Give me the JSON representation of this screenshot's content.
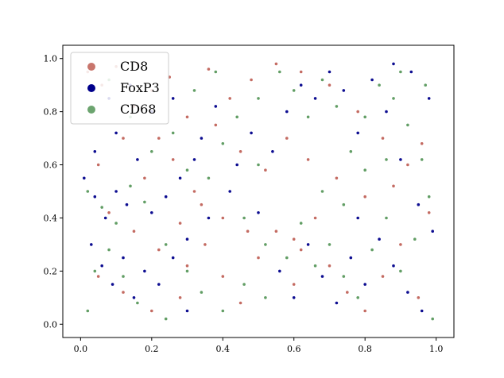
{
  "chart_data": {
    "type": "scatter",
    "title": "",
    "xlabel": "",
    "ylabel": "",
    "xlim": [
      -0.05,
      1.05
    ],
    "ylim": [
      -0.05,
      1.05
    ],
    "xticks": [
      "0.0",
      "0.2",
      "0.4",
      "0.6",
      "0.8",
      "1.0"
    ],
    "yticks": [
      "0.0",
      "0.2",
      "0.4",
      "0.6",
      "0.8",
      "1.0"
    ],
    "grid": false,
    "legend_position": "top-left",
    "series": [
      {
        "name": "CD8",
        "color": "#b03a2e",
        "points": [
          [
            0.02,
            0.95
          ],
          [
            0.06,
            0.9
          ],
          [
            0.1,
            0.97
          ],
          [
            0.15,
            0.82
          ],
          [
            0.2,
            0.88
          ],
          [
            0.25,
            0.93
          ],
          [
            0.3,
            0.78
          ],
          [
            0.12,
            0.7
          ],
          [
            0.05,
            0.6
          ],
          [
            0.18,
            0.55
          ],
          [
            0.26,
            0.62
          ],
          [
            0.32,
            0.5
          ],
          [
            0.08,
            0.42
          ],
          [
            0.15,
            0.35
          ],
          [
            0.22,
            0.28
          ],
          [
            0.3,
            0.22
          ],
          [
            0.05,
            0.18
          ],
          [
            0.12,
            0.12
          ],
          [
            0.2,
            0.05
          ],
          [
            0.28,
            0.1
          ],
          [
            0.35,
            0.3
          ],
          [
            0.4,
            0.18
          ],
          [
            0.45,
            0.08
          ],
          [
            0.5,
            0.25
          ],
          [
            0.55,
            0.35
          ],
          [
            0.6,
            0.32
          ],
          [
            0.62,
            0.28
          ],
          [
            0.66,
            0.4
          ],
          [
            0.7,
            0.22
          ],
          [
            0.75,
            0.12
          ],
          [
            0.8,
            0.05
          ],
          [
            0.85,
            0.18
          ],
          [
            0.9,
            0.3
          ],
          [
            0.95,
            0.1
          ],
          [
            0.98,
            0.42
          ],
          [
            0.92,
            0.6
          ],
          [
            0.85,
            0.7
          ],
          [
            0.78,
            0.8
          ],
          [
            0.7,
            0.9
          ],
          [
            0.62,
            0.95
          ],
          [
            0.55,
            0.98
          ],
          [
            0.48,
            0.92
          ],
          [
            0.42,
            0.85
          ],
          [
            0.38,
            0.75
          ],
          [
            0.45,
            0.65
          ],
          [
            0.52,
            0.58
          ],
          [
            0.58,
            0.7
          ],
          [
            0.64,
            0.62
          ],
          [
            0.72,
            0.55
          ],
          [
            0.8,
            0.48
          ],
          [
            0.88,
            0.52
          ],
          [
            0.96,
            0.68
          ],
          [
            0.34,
            0.45
          ],
          [
            0.4,
            0.4
          ],
          [
            0.47,
            0.35
          ],
          [
            0.28,
            0.38
          ],
          [
            0.22,
            0.7
          ],
          [
            0.36,
            0.96
          ],
          [
            0.16,
            0.98
          ],
          [
            0.6,
            0.15
          ]
        ]
      },
      {
        "name": "FoxP3",
        "color": "#00008b",
        "points": [
          [
            0.01,
            0.55
          ],
          [
            0.04,
            0.48
          ],
          [
            0.07,
            0.4
          ],
          [
            0.1,
            0.5
          ],
          [
            0.13,
            0.45
          ],
          [
            0.03,
            0.3
          ],
          [
            0.06,
            0.22
          ],
          [
            0.09,
            0.15
          ],
          [
            0.12,
            0.25
          ],
          [
            0.15,
            0.1
          ],
          [
            0.18,
            0.2
          ],
          [
            0.22,
            0.15
          ],
          [
            0.26,
            0.25
          ],
          [
            0.3,
            0.05
          ],
          [
            0.2,
            0.42
          ],
          [
            0.24,
            0.48
          ],
          [
            0.28,
            0.55
          ],
          [
            0.32,
            0.62
          ],
          [
            0.08,
            0.85
          ],
          [
            0.14,
            0.9
          ],
          [
            0.2,
            0.8
          ],
          [
            0.26,
            0.85
          ],
          [
            0.34,
            0.7
          ],
          [
            0.38,
            0.82
          ],
          [
            0.44,
            0.6
          ],
          [
            0.5,
            0.42
          ],
          [
            0.56,
            0.2
          ],
          [
            0.6,
            0.1
          ],
          [
            0.64,
            0.3
          ],
          [
            0.68,
            0.18
          ],
          [
            0.72,
            0.08
          ],
          [
            0.76,
            0.25
          ],
          [
            0.8,
            0.15
          ],
          [
            0.84,
            0.32
          ],
          [
            0.88,
            0.22
          ],
          [
            0.92,
            0.12
          ],
          [
            0.96,
            0.05
          ],
          [
            0.99,
            0.35
          ],
          [
            0.95,
            0.45
          ],
          [
            0.9,
            0.62
          ],
          [
            0.86,
            0.8
          ],
          [
            0.82,
            0.92
          ],
          [
            0.78,
            0.72
          ],
          [
            0.74,
            0.88
          ],
          [
            0.7,
            0.95
          ],
          [
            0.66,
            0.85
          ],
          [
            0.62,
            0.9
          ],
          [
            0.58,
            0.8
          ],
          [
            0.54,
            0.65
          ],
          [
            0.48,
            0.72
          ],
          [
            0.42,
            0.5
          ],
          [
            0.36,
            0.4
          ],
          [
            0.3,
            0.32
          ],
          [
            0.16,
            0.62
          ],
          [
            0.1,
            0.72
          ],
          [
            0.04,
            0.65
          ],
          [
            0.93,
            0.95
          ],
          [
            0.98,
            0.85
          ],
          [
            0.88,
            0.98
          ],
          [
            0.78,
            0.4
          ]
        ]
      },
      {
        "name": "CD68",
        "color": "#2e7d32",
        "points": [
          [
            0.02,
            0.5
          ],
          [
            0.06,
            0.44
          ],
          [
            0.1,
            0.38
          ],
          [
            0.14,
            0.52
          ],
          [
            0.18,
            0.46
          ],
          [
            0.04,
            0.2
          ],
          [
            0.08,
            0.28
          ],
          [
            0.12,
            0.18
          ],
          [
            0.16,
            0.08
          ],
          [
            0.24,
            0.3
          ],
          [
            0.3,
            0.2
          ],
          [
            0.34,
            0.12
          ],
          [
            0.4,
            0.05
          ],
          [
            0.46,
            0.15
          ],
          [
            0.52,
            0.1
          ],
          [
            0.58,
            0.25
          ],
          [
            0.62,
            0.38
          ],
          [
            0.66,
            0.22
          ],
          [
            0.7,
            0.3
          ],
          [
            0.74,
            0.18
          ],
          [
            0.78,
            0.1
          ],
          [
            0.82,
            0.28
          ],
          [
            0.86,
            0.4
          ],
          [
            0.9,
            0.2
          ],
          [
            0.94,
            0.32
          ],
          [
            0.98,
            0.48
          ],
          [
            0.96,
            0.62
          ],
          [
            0.92,
            0.75
          ],
          [
            0.88,
            0.85
          ],
          [
            0.84,
            0.9
          ],
          [
            0.8,
            0.78
          ],
          [
            0.76,
            0.65
          ],
          [
            0.72,
            0.82
          ],
          [
            0.68,
            0.92
          ],
          [
            0.64,
            0.78
          ],
          [
            0.6,
            0.88
          ],
          [
            0.56,
            0.95
          ],
          [
            0.5,
            0.85
          ],
          [
            0.44,
            0.78
          ],
          [
            0.4,
            0.68
          ],
          [
            0.36,
            0.55
          ],
          [
            0.3,
            0.58
          ],
          [
            0.26,
            0.72
          ],
          [
            0.2,
            0.65
          ],
          [
            0.14,
            0.78
          ],
          [
            0.08,
            0.92
          ],
          [
            0.32,
            0.88
          ],
          [
            0.38,
            0.95
          ],
          [
            0.46,
            0.4
          ],
          [
            0.52,
            0.3
          ],
          [
            0.68,
            0.5
          ],
          [
            0.74,
            0.45
          ],
          [
            0.8,
            0.58
          ],
          [
            0.86,
            0.62
          ],
          [
            0.9,
            0.95
          ],
          [
            0.97,
            0.9
          ],
          [
            0.99,
            0.02
          ],
          [
            0.02,
            0.05
          ],
          [
            0.5,
            0.6
          ],
          [
            0.24,
            0.02
          ]
        ]
      }
    ]
  }
}
